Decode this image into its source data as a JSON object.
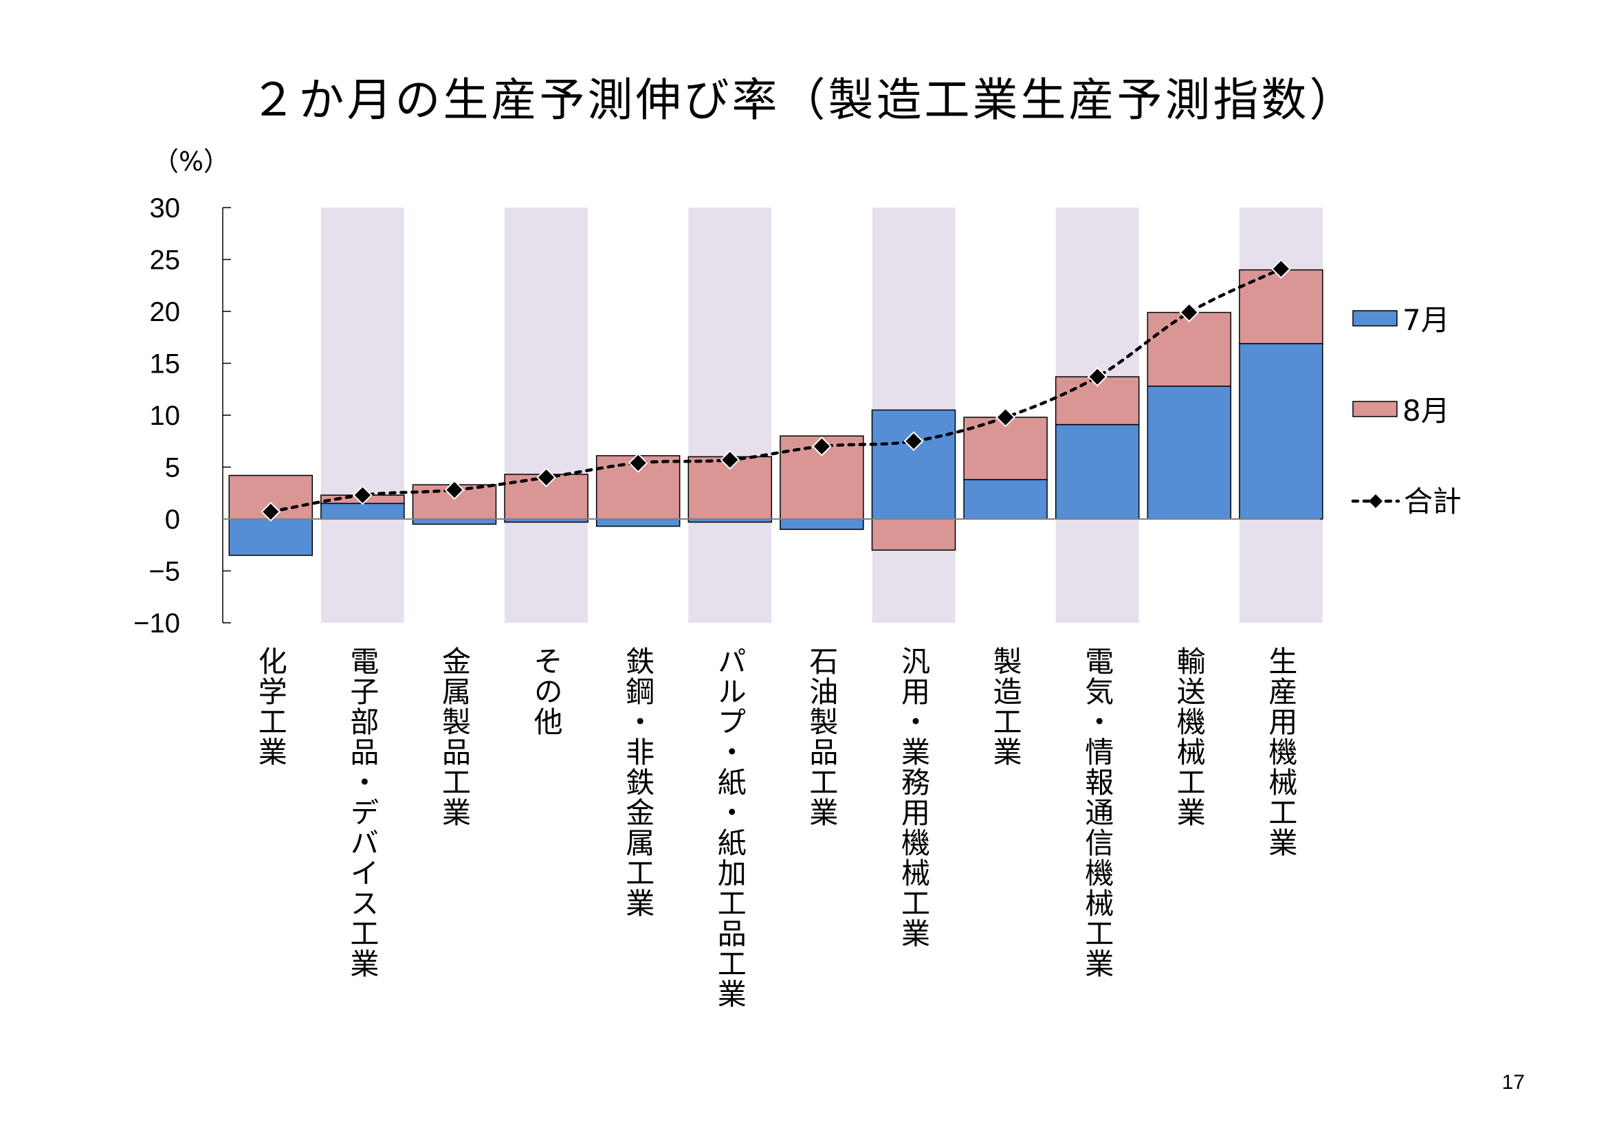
{
  "chart_data": {
    "type": "bar",
    "stacked": true,
    "title": "２か月の生産予測伸び率（製造工業生産予測指数）",
    "ylabel": "（%）",
    "ylim": [
      -10,
      30
    ],
    "yticks": [
      30,
      25,
      20,
      15,
      10,
      5,
      0,
      -5,
      -10
    ],
    "ytick_labels": [
      "30",
      "25",
      "20",
      "15",
      "10",
      "5",
      "0",
      "−5",
      "−10"
    ],
    "categories": [
      "化学工業",
      "電子部品・デバイス工業",
      "金属製品工業",
      "その他",
      "鉄鋼・非鉄金属工業",
      "パルプ・紙・紙加工品工業",
      "石油製品工業",
      "汎用・業務用機械工業",
      "製造工業",
      "電気・情報通信機械工業",
      "輸送機械工業",
      "生産用機械工業"
    ],
    "shaded_categories": [
      1,
      3,
      5,
      7,
      9,
      11
    ],
    "series": [
      {
        "name": "7月",
        "color": "#558ed5",
        "values": [
          -3.5,
          1.5,
          -0.5,
          -0.3,
          -0.7,
          -0.3,
          -1.0,
          10.5,
          3.8,
          9.1,
          12.8,
          16.9
        ]
      },
      {
        "name": "8月",
        "color": "#d99694",
        "values": [
          4.2,
          0.8,
          3.3,
          4.3,
          6.1,
          6.0,
          8.0,
          -3.0,
          6.0,
          4.6,
          7.1,
          7.1
        ]
      },
      {
        "name": "合計",
        "color": "#000000",
        "type": "line",
        "style": "dotted",
        "marker": "diamond",
        "values": [
          0.7,
          2.3,
          2.8,
          4.0,
          5.4,
          5.7,
          7.0,
          7.5,
          9.8,
          13.7,
          19.9,
          24.1
        ]
      }
    ],
    "legend_position": "right",
    "shading_color": "#e6e0ec"
  },
  "page": {
    "number": "17"
  }
}
